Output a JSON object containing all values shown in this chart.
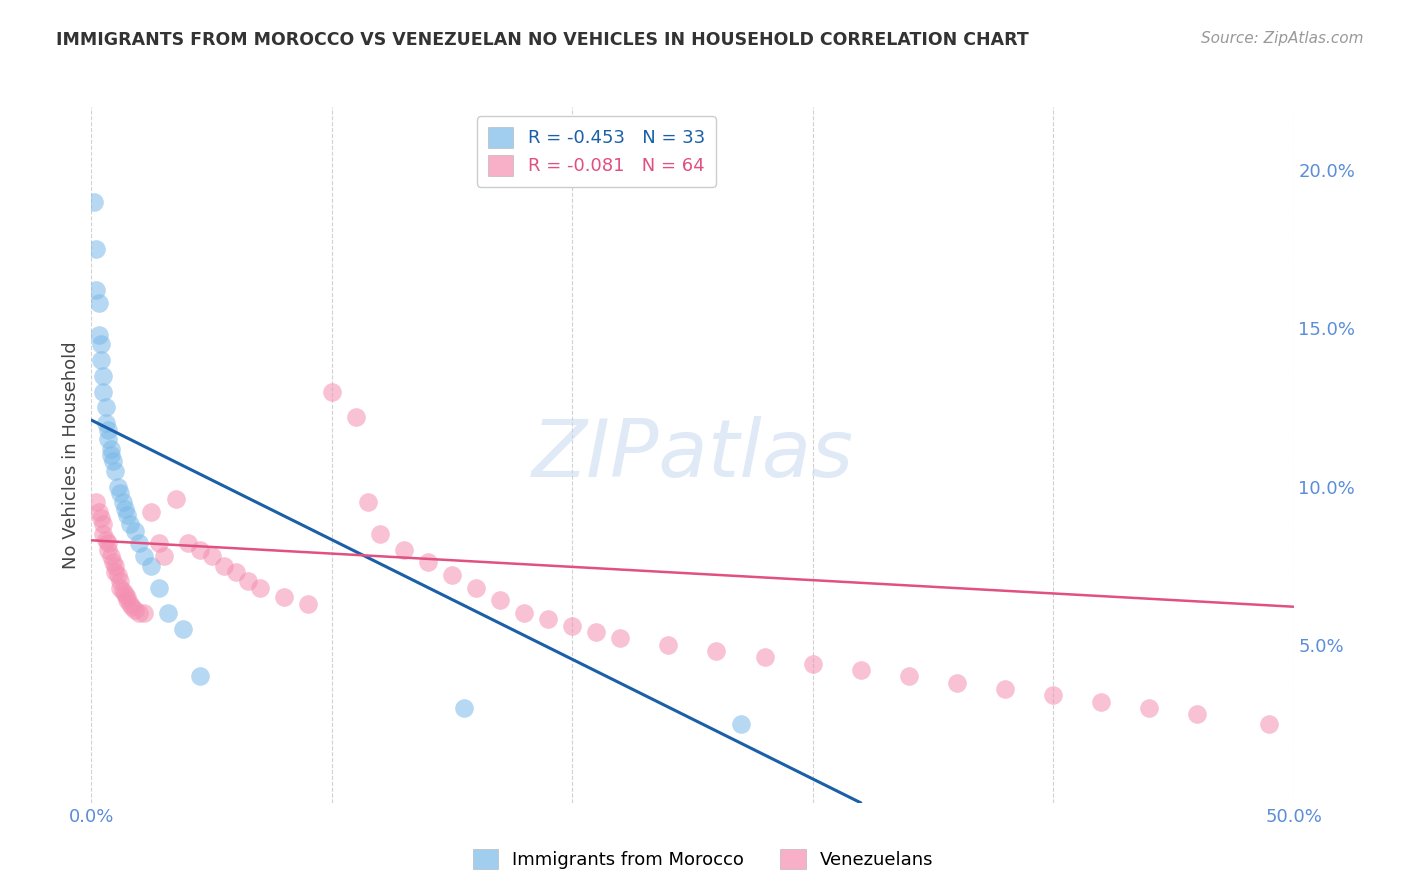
{
  "title": "IMMIGRANTS FROM MOROCCO VS VENEZUELAN NO VEHICLES IN HOUSEHOLD CORRELATION CHART",
  "source": "Source: ZipAtlas.com",
  "ylabel_left": "No Vehicles in Household",
  "xlim": [
    0.0,
    0.5
  ],
  "ylim": [
    0.0,
    0.22
  ],
  "yticks_right": [
    0.05,
    0.1,
    0.15,
    0.2
  ],
  "ytick_right_labels": [
    "5.0%",
    "10.0%",
    "15.0%",
    "20.0%"
  ],
  "legend1_label": "R = -0.453   N = 33",
  "legend2_label": "R = -0.081   N = 64",
  "color_blue": "#7ab8e8",
  "color_pink": "#f48fb1",
  "color_blue_line": "#1a5fa8",
  "color_pink_line": "#e05080",
  "color_axis": "#5b8dd9",
  "watermark_text": "ZIPatlas",
  "blue_scatter_x": [
    0.001,
    0.002,
    0.002,
    0.003,
    0.003,
    0.004,
    0.004,
    0.005,
    0.005,
    0.006,
    0.006,
    0.007,
    0.007,
    0.008,
    0.008,
    0.009,
    0.01,
    0.011,
    0.012,
    0.013,
    0.014,
    0.015,
    0.016,
    0.018,
    0.02,
    0.022,
    0.025,
    0.028,
    0.032,
    0.038,
    0.045,
    0.155,
    0.27
  ],
  "blue_scatter_y": [
    0.19,
    0.175,
    0.162,
    0.158,
    0.148,
    0.145,
    0.14,
    0.135,
    0.13,
    0.125,
    0.12,
    0.118,
    0.115,
    0.112,
    0.11,
    0.108,
    0.105,
    0.1,
    0.098,
    0.095,
    0.093,
    0.091,
    0.088,
    0.086,
    0.082,
    0.078,
    0.075,
    0.068,
    0.06,
    0.055,
    0.04,
    0.03,
    0.025
  ],
  "pink_scatter_x": [
    0.002,
    0.003,
    0.004,
    0.005,
    0.005,
    0.006,
    0.007,
    0.007,
    0.008,
    0.009,
    0.01,
    0.01,
    0.011,
    0.012,
    0.012,
    0.013,
    0.014,
    0.015,
    0.015,
    0.016,
    0.017,
    0.018,
    0.02,
    0.022,
    0.025,
    0.028,
    0.03,
    0.035,
    0.04,
    0.045,
    0.05,
    0.055,
    0.06,
    0.065,
    0.07,
    0.08,
    0.09,
    0.1,
    0.11,
    0.115,
    0.12,
    0.13,
    0.14,
    0.15,
    0.16,
    0.17,
    0.18,
    0.19,
    0.2,
    0.21,
    0.22,
    0.24,
    0.26,
    0.28,
    0.3,
    0.32,
    0.34,
    0.36,
    0.38,
    0.4,
    0.42,
    0.44,
    0.46,
    0.49
  ],
  "pink_scatter_y": [
    0.095,
    0.092,
    0.09,
    0.088,
    0.085,
    0.083,
    0.082,
    0.08,
    0.078,
    0.076,
    0.075,
    0.073,
    0.072,
    0.07,
    0.068,
    0.067,
    0.066,
    0.065,
    0.064,
    0.063,
    0.062,
    0.061,
    0.06,
    0.06,
    0.092,
    0.082,
    0.078,
    0.096,
    0.082,
    0.08,
    0.078,
    0.075,
    0.073,
    0.07,
    0.068,
    0.065,
    0.063,
    0.13,
    0.122,
    0.095,
    0.085,
    0.08,
    0.076,
    0.072,
    0.068,
    0.064,
    0.06,
    0.058,
    0.056,
    0.054,
    0.052,
    0.05,
    0.048,
    0.046,
    0.044,
    0.042,
    0.04,
    0.038,
    0.036,
    0.034,
    0.032,
    0.03,
    0.028,
    0.025
  ],
  "blue_line_x": [
    0.0,
    0.32
  ],
  "blue_line_y": [
    0.121,
    0.0
  ],
  "pink_line_x": [
    0.0,
    0.5
  ],
  "pink_line_y": [
    0.083,
    0.062
  ]
}
